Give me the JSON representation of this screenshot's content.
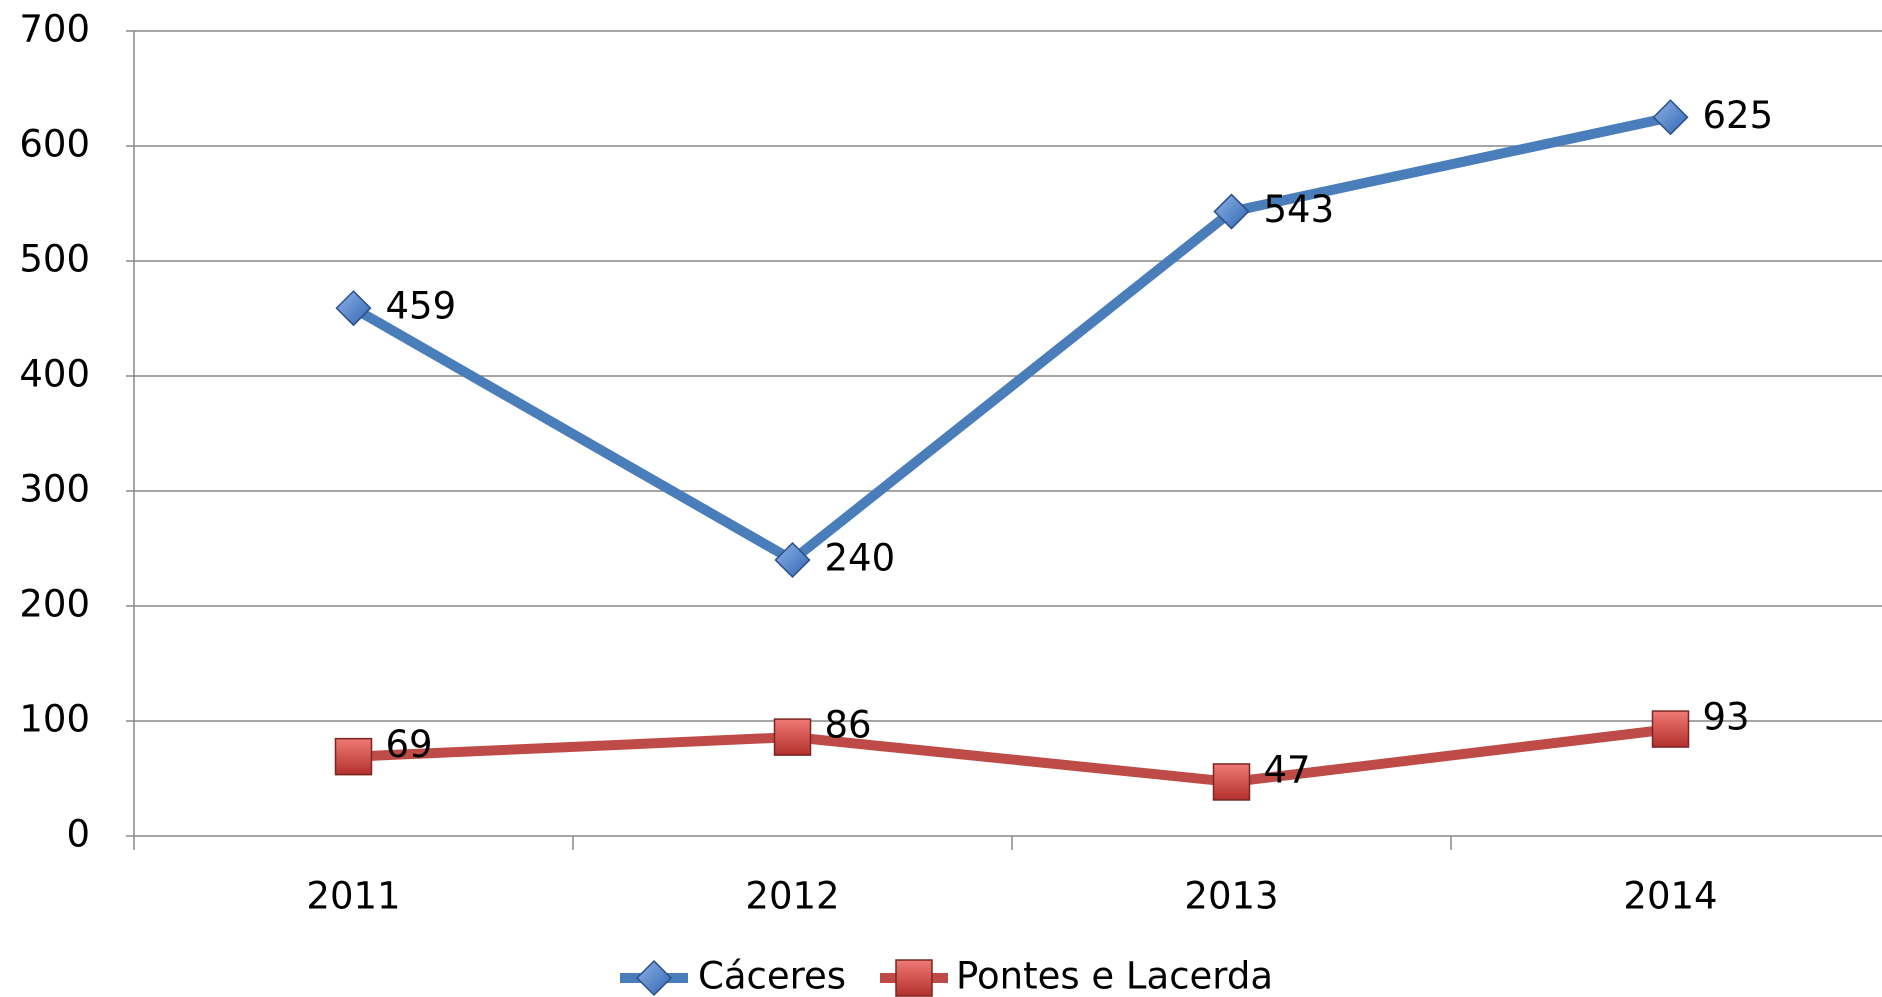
{
  "chart_data": {
    "type": "line",
    "categories": [
      "2011",
      "2012",
      "2013",
      "2014"
    ],
    "series": [
      {
        "name": "Cáceres",
        "color": "#4a7ebb",
        "marker": "diamond",
        "values": [
          459,
          240,
          543,
          625
        ]
      },
      {
        "name": "Pontes e Lacerda",
        "color": "#be4b48",
        "marker": "square",
        "values": [
          69,
          86,
          47,
          93
        ]
      }
    ],
    "ylim": [
      0,
      700
    ],
    "yticks": [
      0,
      100,
      200,
      300,
      400,
      500,
      600,
      700
    ],
    "grid": true,
    "legend": "bottom"
  }
}
